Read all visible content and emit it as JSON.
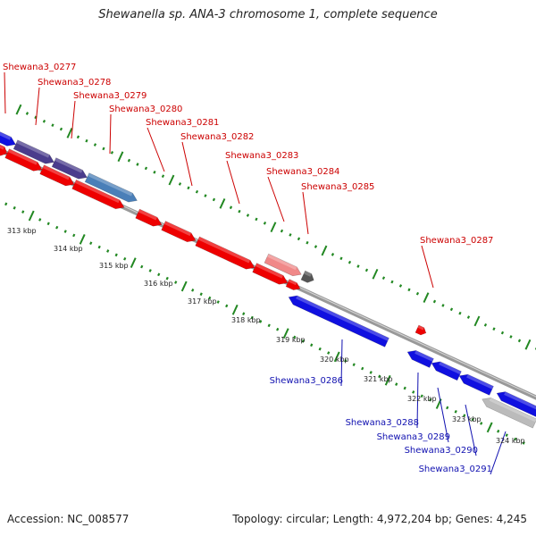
{
  "title": "Shewanella sp. ANA-3 chromosome 1, complete sequence",
  "footer": {
    "accession": "Accession: NC_008577",
    "stats": "Topology: circular; Length: 4,972,204 bp; Genes: 4,245"
  },
  "colors": {
    "forward": "#ee0000",
    "reverse": "#1010e0",
    "forward_label": "#cc0000",
    "reverse_label": "#1010b0",
    "backbone": "#888888",
    "tick": "#228822",
    "pseudo_gray": "#bbbbbb",
    "highlight_pink": "#f08888",
    "highlight_purple": "#4a3c8c",
    "highlight_steel": "#4a7fb8"
  },
  "kbp_ticks": [
    "313 kbp",
    "314 kbp",
    "315 kbp",
    "316 kbp",
    "317 kbp",
    "318 kbp",
    "319 kbp",
    "320 kbp",
    "321 kbp",
    "322 kbp",
    "323 kbp",
    "324 kbp"
  ],
  "forward_labels": [
    "Shewana3_0277",
    "Shewana3_0278",
    "Shewana3_0279",
    "Shewana3_0280",
    "Shewana3_0281",
    "Shewana3_0282",
    "Shewana3_0283",
    "Shewana3_0284",
    "Shewana3_0285",
    "Shewana3_0287"
  ],
  "reverse_labels": [
    "Shewana3_0286",
    "Shewana3_0288",
    "Shewana3_0289",
    "Shewana3_0290",
    "Shewana3_0291"
  ]
}
